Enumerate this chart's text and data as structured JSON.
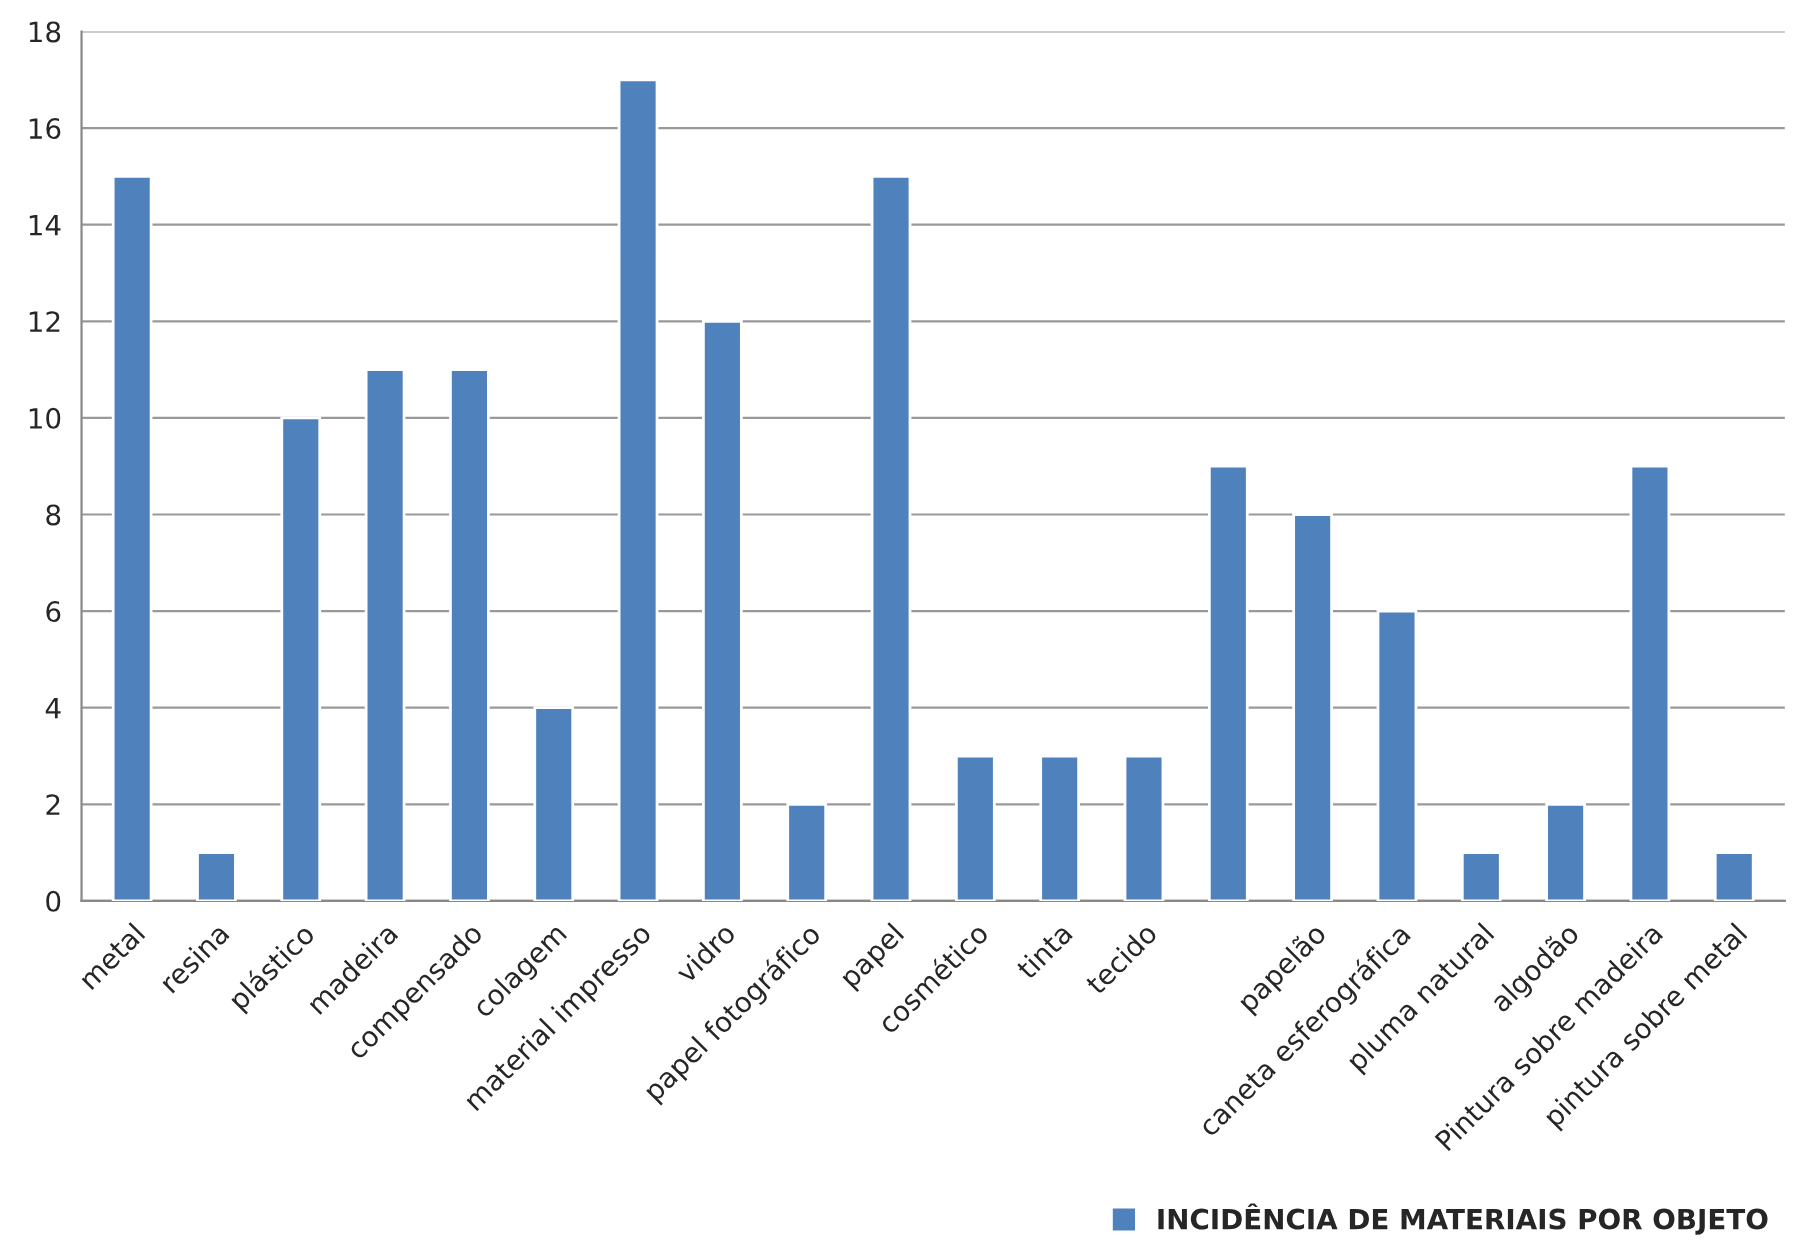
{
  "chart_data": {
    "type": "bar",
    "categories": [
      "metal",
      "resina",
      "plástico",
      "madeira",
      "compensado",
      "colagem",
      "material impresso",
      "vidro",
      "papel fotográfico",
      "papel",
      "cosmético",
      "tinta",
      "tecido",
      null,
      "papelão",
      "caneta esferográfica",
      "pluma natural",
      "algodão",
      "Pintura sobre madeira",
      "pintura sobre metal"
    ],
    "series": [
      {
        "name": "INCIDÊNCIA DE MATERIAIS POR OBJETO",
        "color": "#4f81bd",
        "values": [
          15,
          1,
          10,
          11,
          11,
          4,
          17,
          12,
          2,
          15,
          3,
          3,
          3,
          9,
          8,
          6,
          1,
          2,
          9,
          1
        ]
      }
    ],
    "ylim": [
      0,
      18
    ],
    "yticks": [
      0,
      2,
      4,
      6,
      8,
      10,
      12,
      14,
      16,
      18
    ],
    "grid": "y",
    "legend": "bottom"
  }
}
